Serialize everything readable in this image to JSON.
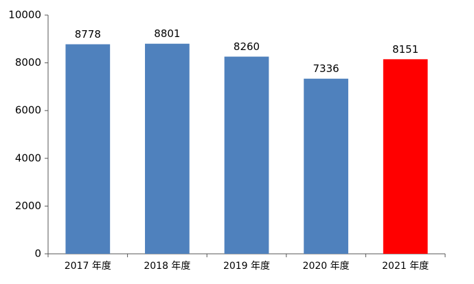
{
  "chart_data": {
    "type": "bar",
    "categories": [
      "2017 年度",
      "2018 年度",
      "2019 年度",
      "2020 年度",
      "2021 年度"
    ],
    "values": [
      8778,
      8801,
      8260,
      7336,
      8151
    ],
    "colors": [
      "#4f81bd",
      "#4f81bd",
      "#4f81bd",
      "#4f81bd",
      "#ff0000"
    ],
    "ylim": [
      0,
      10000
    ],
    "yticks": [
      0,
      2000,
      4000,
      6000,
      8000,
      10000
    ],
    "grid": false
  }
}
